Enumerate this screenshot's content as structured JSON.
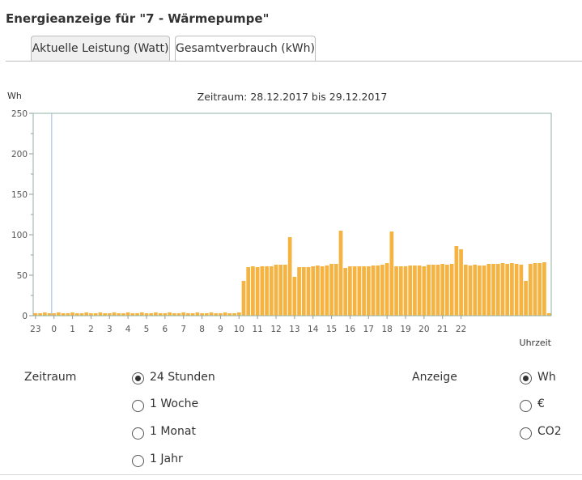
{
  "title": "Energieanzeige für \"7 - Wärmepumpe\"",
  "tabs": [
    {
      "label": "Aktuelle Leistung (Watt)",
      "active": false
    },
    {
      "label": "Gesamtverbrauch (kWh)",
      "active": true
    }
  ],
  "chart_data": {
    "type": "bar",
    "title": "Zeitraum: 28.12.2017 bis 29.12.2017",
    "ylabel": "Wh",
    "xlabel": "Uhrzeit",
    "ylim": [
      0,
      250
    ],
    "yticks": [
      0,
      50,
      100,
      150,
      200,
      250
    ],
    "xtick_labels": [
      "23",
      "0",
      "1",
      "2",
      "3",
      "4",
      "5",
      "6",
      "7",
      "8",
      "9",
      "10",
      "11",
      "12",
      "13",
      "14",
      "15",
      "16",
      "17",
      "18",
      "19",
      "20",
      "21",
      "22"
    ],
    "interval": "15 min",
    "grid": false,
    "bar_color": "#f5b342",
    "values": [
      3,
      3,
      4,
      3,
      3,
      4,
      3,
      3,
      4,
      3,
      3,
      4,
      3,
      3,
      4,
      3,
      3,
      4,
      3,
      3,
      4,
      3,
      3,
      4,
      3,
      3,
      4,
      3,
      3,
      4,
      3,
      3,
      4,
      3,
      3,
      4,
      3,
      3,
      4,
      3,
      3,
      4,
      3,
      3,
      4,
      43,
      60,
      61,
      60,
      61,
      61,
      61,
      63,
      63,
      63,
      97,
      48,
      60,
      60,
      60,
      61,
      62,
      61,
      62,
      64,
      64,
      105,
      59,
      61,
      61,
      61,
      61,
      61,
      62,
      62,
      63,
      65,
      104,
      61,
      61,
      61,
      62,
      62,
      62,
      61,
      63,
      63,
      63,
      64,
      63,
      64,
      86,
      82,
      63,
      62,
      63,
      62,
      62,
      64,
      64,
      64,
      65,
      64,
      65,
      64,
      63,
      43,
      64,
      65,
      65,
      66,
      3
    ]
  },
  "controls": {
    "zeitraum_label": "Zeitraum",
    "zeitraum_options": [
      {
        "label": "24 Stunden",
        "checked": true
      },
      {
        "label": "1 Woche",
        "checked": false
      },
      {
        "label": "1 Monat",
        "checked": false
      },
      {
        "label": "1 Jahr",
        "checked": false
      }
    ],
    "anzeige_label": "Anzeige",
    "anzeige_options": [
      {
        "label": "Wh",
        "checked": true
      },
      {
        "label": "€",
        "checked": false
      },
      {
        "label": "CO2",
        "checked": false
      }
    ]
  }
}
